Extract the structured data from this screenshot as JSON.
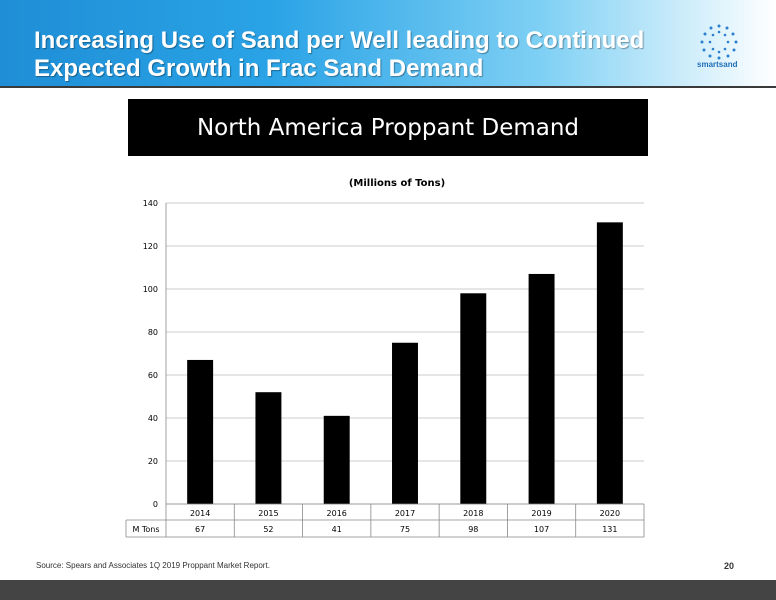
{
  "slide": {
    "title_line1": "Increasing Use of Sand per Well leading to Continued",
    "title_line2": "Expected Growth in Frac Sand Demand",
    "logo_text": "smartsand",
    "banner": "North America Proppant Demand",
    "source": "Source: Spears and Associates 1Q 2019 Proppant Market Report.",
    "page_number": "20"
  },
  "colors": {
    "header_blue": "#1f8ed6",
    "bar": "#000000"
  },
  "chart_data": {
    "type": "bar",
    "title": "(Millions of Tons)",
    "categories": [
      "2014",
      "2015",
      "2016",
      "2017",
      "2018",
      "2019",
      "2020"
    ],
    "series": [
      {
        "name": "M Tons",
        "values": [
          67,
          52,
          41,
          75,
          98,
          107,
          131
        ]
      }
    ],
    "table_labels": [
      "67",
      "52",
      "41",
      "75",
      "98",
      "107",
      "131"
    ],
    "yticks": [
      "0",
      "20",
      "40",
      "60",
      "80",
      "100",
      "120",
      "140"
    ],
    "ylim": [
      0,
      140
    ],
    "grid": true,
    "legend": "data table row"
  }
}
